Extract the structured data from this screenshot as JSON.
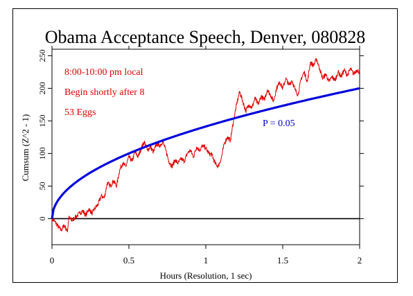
{
  "chart_data": {
    "type": "line",
    "title": "Obama Acceptance Speech, Denver, 080828",
    "xlabel": "Hours (Resolution, 1 sec)",
    "ylabel": "Cumsum (Z^2 - 1)",
    "xlim": [
      0,
      2
    ],
    "ylim": [
      -40,
      260
    ],
    "xticks": [
      0,
      0.5,
      1,
      1.5,
      2
    ],
    "xtick_labels": [
      "0",
      "0.5",
      "1",
      "1.5",
      "2"
    ],
    "yticks": [
      0,
      50,
      100,
      150,
      200,
      250
    ],
    "ytick_labels": [
      "0",
      "50",
      "100",
      "150",
      "200",
      "250"
    ],
    "grid": false,
    "annotations": {
      "time": "8:00-10:00 pm local",
      "begin": "Begin shortly after 8",
      "eggs": "53 Eggs",
      "p_label": "P = 0.05"
    },
    "colors": {
      "observed": "#e00000",
      "envelope": "#0000dd",
      "zero": "#000000",
      "annotation_red": "#dd0000",
      "annotation_blue": "#0000cc"
    },
    "series": [
      {
        "role": "cumulative-deviation",
        "color": "#e00000",
        "points": [
          [
            0,
            0
          ],
          [
            0.02,
            -5
          ],
          [
            0.04,
            -12
          ],
          [
            0.06,
            -18
          ],
          [
            0.08,
            -10
          ],
          [
            0.1,
            -20
          ],
          [
            0.11,
            2
          ],
          [
            0.13,
            -3
          ],
          [
            0.15,
            2
          ],
          [
            0.18,
            8
          ],
          [
            0.2,
            12
          ],
          [
            0.22,
            5
          ],
          [
            0.24,
            15
          ],
          [
            0.26,
            8
          ],
          [
            0.28,
            16
          ],
          [
            0.3,
            22
          ],
          [
            0.32,
            35
          ],
          [
            0.34,
            32
          ],
          [
            0.36,
            55
          ],
          [
            0.38,
            50
          ],
          [
            0.4,
            58
          ],
          [
            0.42,
            50
          ],
          [
            0.44,
            75
          ],
          [
            0.46,
            85
          ],
          [
            0.48,
            80
          ],
          [
            0.5,
            95
          ],
          [
            0.52,
            88
          ],
          [
            0.54,
            102
          ],
          [
            0.56,
            95
          ],
          [
            0.58,
            108
          ],
          [
            0.6,
            118
          ],
          [
            0.62,
            105
          ],
          [
            0.64,
            110
          ],
          [
            0.66,
            102
          ],
          [
            0.68,
            115
          ],
          [
            0.7,
            112
          ],
          [
            0.72,
            118
          ],
          [
            0.74,
            105
          ],
          [
            0.76,
            88
          ],
          [
            0.78,
            80
          ],
          [
            0.8,
            90
          ],
          [
            0.82,
            85
          ],
          [
            0.84,
            92
          ],
          [
            0.86,
            88
          ],
          [
            0.88,
            100
          ],
          [
            0.9,
            105
          ],
          [
            0.92,
            95
          ],
          [
            0.94,
            110
          ],
          [
            0.96,
            105
          ],
          [
            0.98,
            112
          ],
          [
            1.0,
            108
          ],
          [
            1.02,
            100
          ],
          [
            1.04,
            98
          ],
          [
            1.06,
            85
          ],
          [
            1.08,
            80
          ],
          [
            1.1,
            92
          ],
          [
            1.12,
            115
          ],
          [
            1.14,
            125
          ],
          [
            1.16,
            120
          ],
          [
            1.18,
            150
          ],
          [
            1.2,
            175
          ],
          [
            1.22,
            195
          ],
          [
            1.24,
            180
          ],
          [
            1.26,
            165
          ],
          [
            1.28,
            175
          ],
          [
            1.3,
            170
          ],
          [
            1.32,
            185
          ],
          [
            1.34,
            175
          ],
          [
            1.36,
            188
          ],
          [
            1.38,
            182
          ],
          [
            1.4,
            198
          ],
          [
            1.42,
            190
          ],
          [
            1.44,
            180
          ],
          [
            1.46,
            200
          ],
          [
            1.48,
            210
          ],
          [
            1.5,
            200
          ],
          [
            1.52,
            215
          ],
          [
            1.54,
            205
          ],
          [
            1.56,
            212
          ],
          [
            1.58,
            198
          ],
          [
            1.6,
            190
          ],
          [
            1.62,
            215
          ],
          [
            1.64,
            225
          ],
          [
            1.66,
            210
          ],
          [
            1.68,
            240
          ],
          [
            1.7,
            235
          ],
          [
            1.72,
            245
          ],
          [
            1.74,
            230
          ],
          [
            1.76,
            215
          ],
          [
            1.78,
            222
          ],
          [
            1.8,
            210
          ],
          [
            1.82,
            218
          ],
          [
            1.84,
            212
          ],
          [
            1.86,
            225
          ],
          [
            1.88,
            218
          ],
          [
            1.9,
            228
          ],
          [
            1.92,
            220
          ],
          [
            1.94,
            230
          ],
          [
            1.96,
            222
          ],
          [
            1.98,
            228
          ],
          [
            2.0,
            225
          ]
        ]
      },
      {
        "role": "p-0.05-envelope",
        "color": "#0000dd",
        "function": "sqrt",
        "value_at_end": 200,
        "end_x": 2
      },
      {
        "role": "zero-baseline",
        "color": "#000000",
        "value": 0
      }
    ]
  }
}
